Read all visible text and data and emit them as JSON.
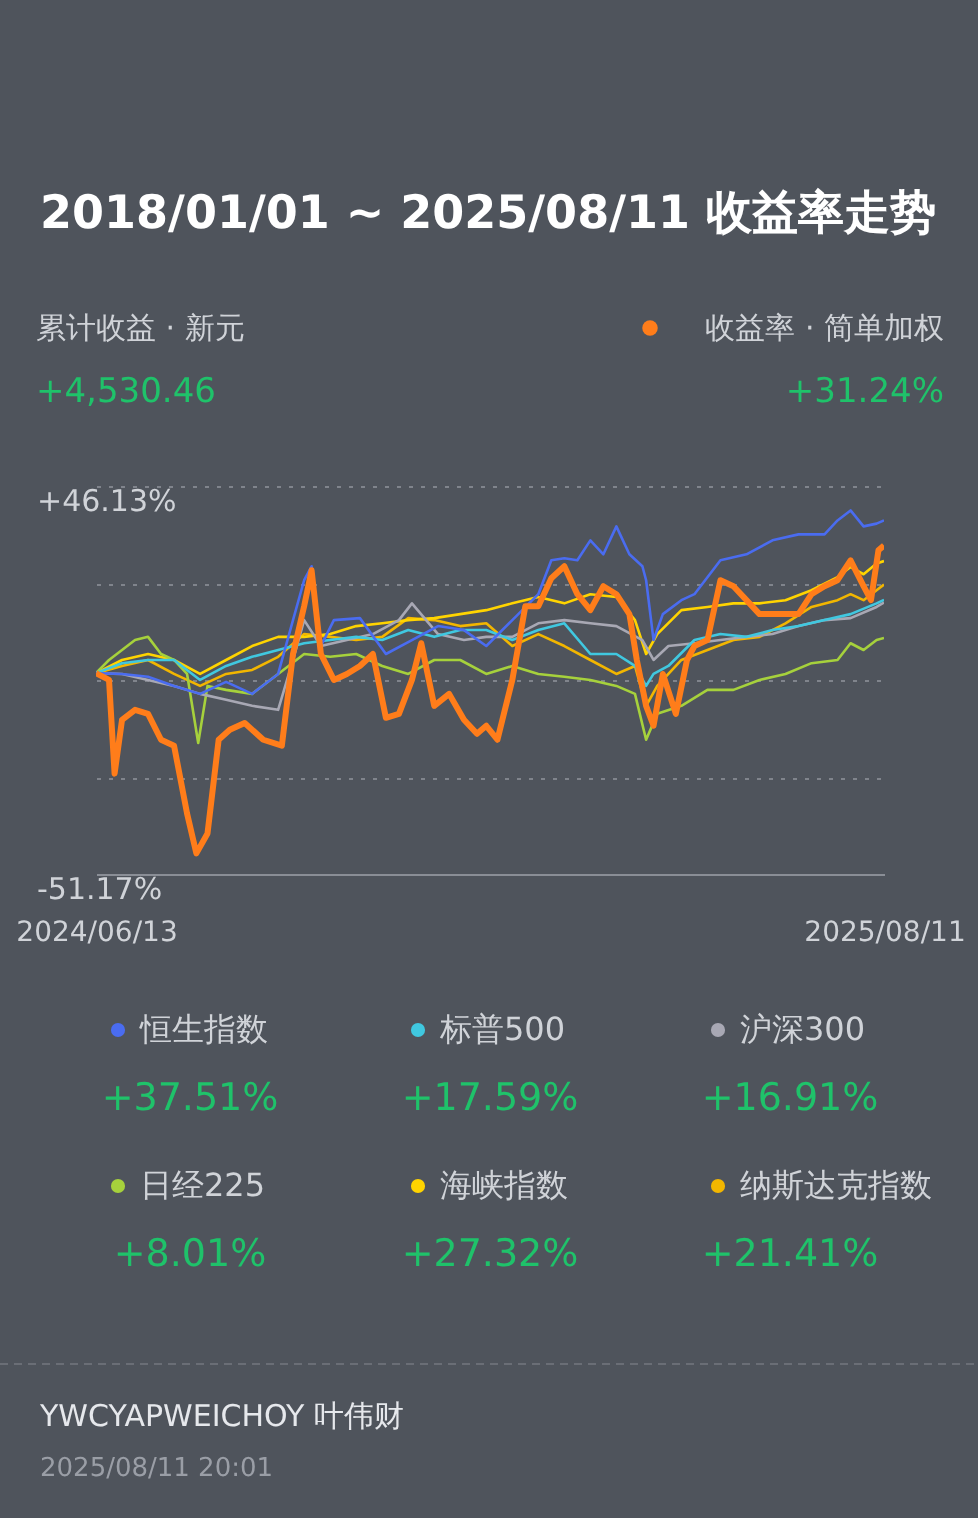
{
  "chart_data": {
    "type": "line",
    "title": "2018/01/01 ~ 2025/08/11 收益率走势",
    "annotations": [
      "累计收益 · 新元",
      "+4,530.46",
      "+31.24%",
      "+37.51%",
      "+17.59%",
      "+16.91%",
      "+8.01%",
      "+27.32%",
      "+21.41%",
      "YWCYAPWEICHOY 叶伟财",
      "2025/08/11 20:01"
    ],
    "xlim": [
      "2024-06-13",
      "2025-08-11"
    ],
    "xticks": [
      {
        "value": "2024-06-13",
        "label": "2024/06/13"
      },
      {
        "value": "2025-08-11",
        "label": "2025/08/11"
      }
    ],
    "ylim": [
      -51.17,
      46.13
    ],
    "yticks": [
      {
        "value": 46.13,
        "label": "+46.13%"
      },
      {
        "value": 21.805,
        "label": null
      },
      {
        "value": -2.52,
        "label": null
      },
      {
        "value": -26.845,
        "label": null
      },
      {
        "value": -51.17,
        "label": "-51.17%"
      }
    ],
    "grid": "y",
    "legend": "bottom",
    "series": [
      {
        "name": "收益率 · 简单加权",
        "color": "#ff7d1a",
        "x": [
          "2024-06-13",
          "2024-06-20",
          "2024-06-23",
          "2024-06-27",
          "2024-07-04",
          "2024-07-11",
          "2024-07-18",
          "2024-07-25",
          "2024-08-01",
          "2024-08-06",
          "2024-08-12",
          "2024-08-18",
          "2024-08-24",
          "2024-09-01",
          "2024-09-11",
          "2024-09-21",
          "2024-09-27",
          "2024-10-03",
          "2024-10-07",
          "2024-10-12",
          "2024-10-19",
          "2024-10-26",
          "2024-11-02",
          "2024-11-09",
          "2024-11-16",
          "2024-11-23",
          "2024-11-30",
          "2024-12-05",
          "2024-12-12",
          "2024-12-20",
          "2024-12-28",
          "2025-01-04",
          "2025-01-09",
          "2025-01-15",
          "2025-01-23",
          "2025-01-30",
          "2025-02-06",
          "2025-02-13",
          "2025-02-20",
          "2025-02-27",
          "2025-03-06",
          "2025-03-13",
          "2025-03-20",
          "2025-03-27",
          "2025-03-31",
          "2025-04-05",
          "2025-04-09",
          "2025-04-14",
          "2025-04-21",
          "2025-04-27",
          "2025-05-01",
          "2025-05-08",
          "2025-05-15",
          "2025-05-22",
          "2025-05-29",
          "2025-06-05",
          "2025-06-12",
          "2025-06-19",
          "2025-06-26",
          "2025-07-03",
          "2025-07-10",
          "2025-07-17",
          "2025-07-24",
          "2025-07-31",
          "2025-08-04",
          "2025-08-08",
          "2025-08-11"
        ],
        "values": [
          -0.8,
          -2.5,
          -26,
          -12.5,
          -10,
          -11,
          -17.5,
          -19,
          -36,
          -46,
          -41,
          -17.5,
          -15,
          -13.3,
          -17.5,
          -19,
          4,
          16,
          25,
          4,
          -2.5,
          -1,
          1,
          4,
          -12,
          -11,
          -2.5,
          6.7,
          -9,
          -6,
          -12.5,
          -16,
          -14,
          -17.5,
          -2.5,
          16,
          16,
          23,
          26,
          19,
          15,
          21,
          19,
          14,
          2.5,
          -9,
          -14,
          -1,
          -11,
          2.5,
          6,
          7.5,
          22.5,
          21,
          17.5,
          14,
          14,
          14,
          14,
          19,
          21,
          22.5,
          27.5,
          21,
          17.5,
          30,
          31.24
        ]
      },
      {
        "name": "恒生指数",
        "color": "#4a6cf0",
        "x": [
          "2024-06-13",
          "2024-06-27",
          "2024-07-11",
          "2024-07-25",
          "2024-08-08",
          "2024-08-22",
          "2024-09-05",
          "2024-09-19",
          "2024-09-27",
          "2024-10-03",
          "2024-10-07",
          "2024-10-12",
          "2024-10-19",
          "2024-11-02",
          "2024-11-16",
          "2024-11-30",
          "2024-12-14",
          "2024-12-28",
          "2025-01-09",
          "2025-01-23",
          "2025-02-06",
          "2025-02-13",
          "2025-02-20",
          "2025-02-27",
          "2025-03-06",
          "2025-03-13",
          "2025-03-20",
          "2025-03-27",
          "2025-04-03",
          "2025-04-05",
          "2025-04-09",
          "2025-04-14",
          "2025-04-24",
          "2025-05-01",
          "2025-05-15",
          "2025-05-29",
          "2025-06-12",
          "2025-06-26",
          "2025-07-10",
          "2025-07-17",
          "2025-07-24",
          "2025-07-31",
          "2025-08-07",
          "2025-08-11"
        ],
        "values": [
          -0.8,
          -1,
          -1.7,
          -4,
          -6,
          -3,
          -6,
          -1,
          12.5,
          22.5,
          26,
          6,
          12.5,
          13,
          4,
          7.5,
          11,
          10,
          6,
          12.5,
          19,
          27.5,
          28,
          27.5,
          32.5,
          29,
          36,
          29,
          26,
          22.5,
          7.5,
          14,
          17.5,
          19,
          27.5,
          29,
          32.5,
          34,
          34,
          37.5,
          40,
          36,
          36.7,
          37.51
        ]
      },
      {
        "name": "标普500",
        "color": "#40c8e0",
        "x": [
          "2024-06-13",
          "2024-06-27",
          "2024-07-11",
          "2024-07-25",
          "2024-08-08",
          "2024-08-22",
          "2024-09-05",
          "2024-09-19",
          "2024-10-03",
          "2024-10-17",
          "2024-10-31",
          "2024-11-14",
          "2024-11-28",
          "2024-12-12",
          "2024-12-26",
          "2025-01-09",
          "2025-01-23",
          "2025-02-06",
          "2025-02-20",
          "2025-03-06",
          "2025-03-20",
          "2025-03-30",
          "2025-04-05",
          "2025-04-09",
          "2025-04-17",
          "2025-05-01",
          "2025-05-15",
          "2025-05-29",
          "2025-06-12",
          "2025-06-26",
          "2025-07-10",
          "2025-07-24",
          "2025-08-07",
          "2025-08-11"
        ],
        "values": [
          -0.8,
          1.7,
          2.5,
          2.5,
          -2.5,
          1,
          3.3,
          5,
          6.7,
          7.5,
          8.3,
          7.5,
          10,
          8.3,
          10,
          10,
          7.5,
          10,
          11.7,
          4,
          4,
          1,
          -4,
          -1,
          1,
          7.5,
          9,
          8.3,
          10,
          11,
          12.5,
          14,
          16.7,
          17.59
        ]
      },
      {
        "name": "沪深300",
        "color": "#a8a8b4",
        "x": [
          "2024-06-13",
          "2024-06-27",
          "2024-07-11",
          "2024-07-25",
          "2024-08-08",
          "2024-08-22",
          "2024-09-05",
          "2024-09-19",
          "2024-09-27",
          "2024-10-03",
          "2024-10-12",
          "2024-10-26",
          "2024-11-09",
          "2024-11-23",
          "2024-11-30",
          "2024-12-14",
          "2024-12-28",
          "2025-01-09",
          "2025-01-23",
          "2025-02-06",
          "2025-02-20",
          "2025-03-06",
          "2025-03-20",
          "2025-04-03",
          "2025-04-09",
          "2025-04-17",
          "2025-05-01",
          "2025-05-15",
          "2025-05-29",
          "2025-06-12",
          "2025-06-26",
          "2025-07-10",
          "2025-07-24",
          "2025-08-07",
          "2025-08-11"
        ],
        "values": [
          -0.8,
          -1,
          -2.5,
          -4,
          -6,
          -7.5,
          -9,
          -10,
          2.5,
          12.5,
          6,
          7.5,
          9,
          12.5,
          16.7,
          9,
          7.5,
          8.3,
          8.3,
          11.7,
          12.5,
          11.7,
          11,
          7.5,
          2.5,
          6,
          6.7,
          7.5,
          8.3,
          9,
          11,
          12.5,
          13,
          15.8,
          16.91
        ]
      },
      {
        "name": "日经225",
        "color": "#a6d13c",
        "x": [
          "2024-06-13",
          "2024-06-20",
          "2024-07-04",
          "2024-07-11",
          "2024-07-18",
          "2024-07-25",
          "2024-08-01",
          "2024-08-07",
          "2024-08-12",
          "2024-08-22",
          "2024-09-05",
          "2024-09-19",
          "2024-10-03",
          "2024-10-17",
          "2024-10-31",
          "2024-11-14",
          "2024-11-28",
          "2024-12-12",
          "2024-12-26",
          "2025-01-09",
          "2025-01-23",
          "2025-02-06",
          "2025-02-20",
          "2025-03-06",
          "2025-03-20",
          "2025-03-30",
          "2025-04-05",
          "2025-04-11",
          "2025-04-24",
          "2025-05-08",
          "2025-05-22",
          "2025-06-05",
          "2025-06-19",
          "2025-07-03",
          "2025-07-17",
          "2025-07-24",
          "2025-07-31",
          "2025-08-07",
          "2025-08-11"
        ],
        "values": [
          -0.8,
          2.5,
          7.5,
          8.3,
          4,
          2.5,
          -1,
          -18.3,
          -4,
          -5,
          -6,
          -1,
          4,
          3.3,
          4,
          1,
          -1,
          2.5,
          2.5,
          -1,
          1,
          -1,
          -1.7,
          -2.5,
          -4,
          -6,
          -17.5,
          -11,
          -9,
          -5,
          -5,
          -2.5,
          -1,
          1.7,
          2.5,
          6.7,
          5,
          7.5,
          8.01
        ]
      },
      {
        "name": "海峡指数",
        "color": "#ffd400",
        "x": [
          "2024-06-13",
          "2024-06-27",
          "2024-07-11",
          "2024-07-25",
          "2024-08-08",
          "2024-08-22",
          "2024-09-05",
          "2024-09-19",
          "2024-10-03",
          "2024-10-17",
          "2024-10-31",
          "2024-11-14",
          "2024-11-28",
          "2024-12-12",
          "2024-12-26",
          "2025-01-09",
          "2025-01-23",
          "2025-02-06",
          "2025-02-20",
          "2025-03-06",
          "2025-03-20",
          "2025-03-30",
          "2025-04-05",
          "2025-04-11",
          "2025-04-24",
          "2025-05-08",
          "2025-05-22",
          "2025-06-05",
          "2025-06-19",
          "2025-07-03",
          "2025-07-17",
          "2025-07-24",
          "2025-07-31",
          "2025-08-07",
          "2025-08-11"
        ],
        "values": [
          -0.8,
          2.5,
          4,
          2.5,
          -1,
          2.5,
          6,
          8.3,
          8.3,
          9,
          11,
          11.7,
          12.5,
          13,
          14,
          15,
          16.7,
          18.3,
          16.7,
          19,
          18.3,
          12.5,
          4,
          9,
          15,
          15.8,
          16.7,
          16.7,
          17.5,
          20,
          23.3,
          25.8,
          24,
          26.7,
          27.32
        ]
      },
      {
        "name": "纳斯达克指数",
        "color": "#f2b600",
        "x": [
          "2024-06-13",
          "2024-06-27",
          "2024-07-11",
          "2024-07-25",
          "2024-08-08",
          "2024-08-22",
          "2024-09-05",
          "2024-09-19",
          "2024-10-03",
          "2024-10-17",
          "2024-10-31",
          "2024-11-14",
          "2024-11-28",
          "2024-12-12",
          "2024-12-26",
          "2025-01-09",
          "2025-01-23",
          "2025-02-06",
          "2025-02-20",
          "2025-03-06",
          "2025-03-20",
          "2025-03-30",
          "2025-04-05",
          "2025-04-11",
          "2025-04-24",
          "2025-05-08",
          "2025-05-22",
          "2025-06-05",
          "2025-06-19",
          "2025-07-03",
          "2025-07-17",
          "2025-07-24",
          "2025-07-31",
          "2025-08-07",
          "2025-08-11"
        ],
        "values": [
          -0.8,
          1,
          2.5,
          -1,
          -4,
          -1,
          0,
          3.3,
          9,
          8.3,
          7.5,
          8.3,
          13,
          12.5,
          11,
          11.7,
          6,
          9,
          6,
          2.5,
          -1,
          1,
          -9,
          -4,
          2.5,
          5,
          7.5,
          8.3,
          11.7,
          15.8,
          17.5,
          19,
          17.5,
          20,
          21.41
        ]
      }
    ]
  }
}
